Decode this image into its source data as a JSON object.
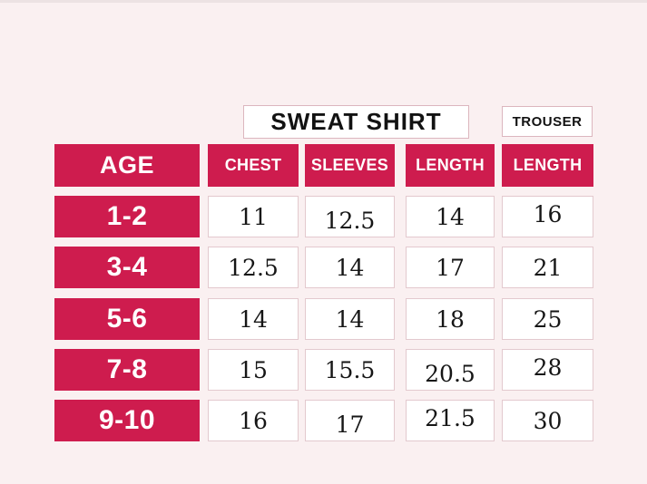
{
  "titles": {
    "sweatshirt": "SWEAT SHIRT",
    "trouser": "TROUSER"
  },
  "table": {
    "headers": [
      "AGE",
      "CHEST",
      "SLEEVES",
      "LENGTH",
      "LENGTH"
    ],
    "rows": [
      {
        "age": "1-2",
        "values": [
          "11",
          "12.5",
          "14",
          "16"
        ]
      },
      {
        "age": "3-4",
        "values": [
          "12.5",
          "14",
          "17",
          "21"
        ]
      },
      {
        "age": "5-6",
        "values": [
          "14",
          "14",
          "18",
          "25"
        ]
      },
      {
        "age": "7-8",
        "values": [
          "15",
          "15.5",
          "20.5",
          "28"
        ]
      },
      {
        "age": "9-10",
        "values": [
          "16",
          "17",
          "21.5",
          "30"
        ]
      }
    ]
  },
  "chart_data": {
    "type": "table",
    "title": "SWEAT SHIRT",
    "secondary_title": "TROUSER",
    "columns": [
      "AGE",
      "CHEST",
      "SLEEVES",
      "LENGTH",
      "LENGTH (TROUSER)"
    ],
    "rows": [
      [
        "1-2",
        11,
        12.5,
        14,
        16
      ],
      [
        "3-4",
        12.5,
        14,
        17,
        21
      ],
      [
        "5-6",
        14,
        14,
        18,
        25
      ],
      [
        "7-8",
        15,
        15.5,
        20.5,
        28
      ],
      [
        "9-10",
        16,
        17,
        21.5,
        30
      ]
    ]
  },
  "colors": {
    "accent": "#ce1c4e",
    "background": "#faf0f1",
    "cell_border": "#e3c9ce",
    "title_border": "#dcb6be",
    "text": "#161616"
  }
}
